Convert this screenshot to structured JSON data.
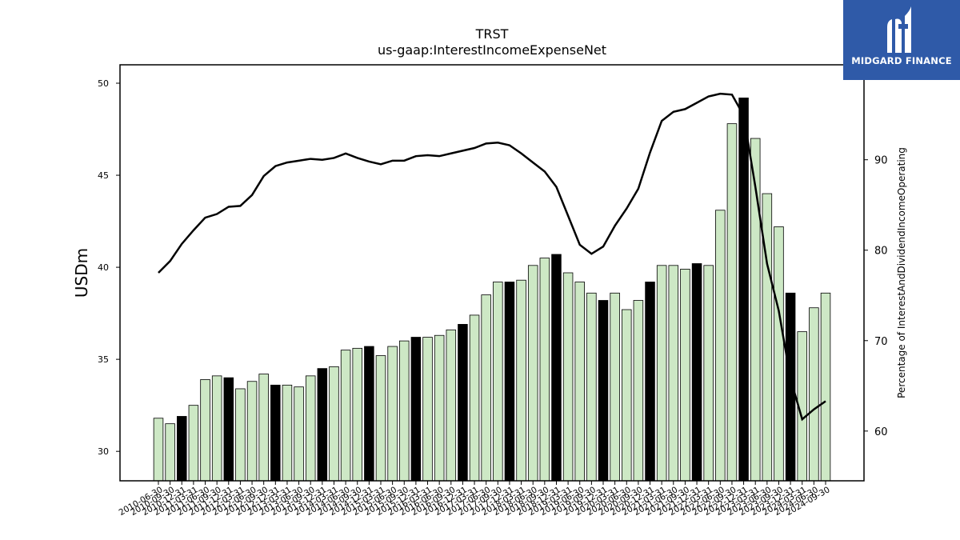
{
  "logo": {
    "text": "MIDGARD FINANCE",
    "bg": "#2f5aa8"
  },
  "chart_data": {
    "type": "bar+line",
    "title": "TRST",
    "subtitle": "us-gaap:InterestIncomeExpenseNet",
    "ylabel": "USDm",
    "y2label": "Percentage of InterestAndDividendIncomeOperating",
    "ylim": [
      28.4,
      51.0
    ],
    "y2lim": [
      54.5,
      100.5
    ],
    "yticks": [
      30,
      35,
      40,
      45,
      50
    ],
    "y2ticks": [
      60,
      70,
      80,
      90
    ],
    "bar_fill": "#cde8c5",
    "bar_highlight": "#000000",
    "line_color": "#000000",
    "categories": [
      "2010-06-30",
      "2010-09-30",
      "2010-12-31",
      "2011-03-31",
      "2011-06-30",
      "2011-09-30",
      "2011-12-31",
      "2012-03-31",
      "2012-06-30",
      "2012-09-30",
      "2012-12-31",
      "2013-03-31",
      "2013-06-30",
      "2013-09-30",
      "2013-12-31",
      "2014-03-31",
      "2014-06-30",
      "2014-09-30",
      "2014-12-31",
      "2015-03-31",
      "2015-06-30",
      "2015-09-30",
      "2015-12-31",
      "2016-03-31",
      "2016-06-30",
      "2016-09-30",
      "2016-12-31",
      "2017-03-31",
      "2017-06-30",
      "2017-09-30",
      "2017-12-31",
      "2018-03-31",
      "2018-06-30",
      "2018-09-30",
      "2018-12-31",
      "2019-03-31",
      "2019-06-30",
      "2019-09-30",
      "2019-12-31",
      "2020-03-31",
      "2020-06-30",
      "2020-09-30",
      "2020-12-31",
      "2021-03-31",
      "2021-06-30",
      "2021-09-30",
      "2021-12-31",
      "2022-03-31",
      "2022-06-30",
      "2022-09-30",
      "2022-12-31",
      "2023-03-31",
      "2023-06-30",
      "2023-09-30",
      "2023-12-31",
      "2024-03-31",
      "2024-06-30",
      "2024-09-30"
    ],
    "tick_labels": [
      "2010-06-30",
      "2010-09-30",
      "2010-12-31",
      "2011-03-31",
      "2011-06-30",
      "2011-09-30",
      "2011-12-31",
      "2012-03-31",
      "2012-06-30",
      "2012-09-30",
      "2012-12-31",
      "2013-03-31",
      "2013-06-30",
      "2013-09-30",
      "2013-12-31",
      "2014-03-31",
      "2014-06-30",
      "2014-09-30",
      "2014-12-31",
      "2015-03-31",
      "2015-06-30",
      "2015-09-30",
      "2015-12-31",
      "2016-03-31",
      "2016-06-30",
      "2016-09-30",
      "2016-12-31",
      "2017-03-31",
      "2017-06-30",
      "2017-09-30",
      "2017-12-31",
      "2018-03-31",
      "2018-06-30",
      "2018-09-30",
      "2018-12-31",
      "2019-03-31",
      "2019-06-30",
      "2019-09-30",
      "2019-12-31",
      "2020-03-31",
      "2020-06-30",
      "2020-09-30",
      "2020-12-31",
      "2021-03-31",
      "2021-06-30",
      "2021-09-30",
      "2021-12-31",
      "2022-03-31",
      "2022-06-30",
      "2022-09-30",
      "2022-12-31",
      "2023-03-31",
      "2023-06-30",
      "2023-09-30",
      "2023-12-31",
      "2024-03-31",
      "2024-06-30",
      "2024-09-30"
    ],
    "values": [
      31.8,
      31.5,
      31.9,
      32.5,
      33.9,
      34.1,
      34.0,
      33.4,
      33.8,
      34.2,
      33.6,
      33.6,
      33.5,
      34.1,
      34.5,
      34.6,
      35.5,
      35.6,
      35.7,
      35.2,
      35.7,
      36.0,
      36.2,
      36.2,
      36.3,
      36.6,
      36.9,
      37.4,
      38.5,
      39.2,
      39.2,
      39.3,
      40.1,
      40.5,
      40.7,
      39.7,
      39.2,
      38.6,
      38.2,
      38.6,
      37.7,
      38.2,
      39.2,
      40.1,
      40.1,
      39.9,
      40.2,
      40.1,
      43.1,
      47.8,
      49.2,
      47.0,
      44.0,
      42.2,
      38.6,
      36.5,
      37.8,
      38.6
    ],
    "highlight": [
      false,
      false,
      true,
      false,
      false,
      false,
      true,
      false,
      false,
      false,
      true,
      false,
      false,
      false,
      true,
      false,
      false,
      false,
      true,
      false,
      false,
      false,
      true,
      false,
      false,
      false,
      true,
      false,
      false,
      false,
      true,
      false,
      false,
      false,
      true,
      false,
      false,
      false,
      true,
      false,
      false,
      false,
      true,
      false,
      false,
      false,
      true,
      false,
      false,
      false,
      true,
      false,
      false,
      false,
      true,
      false,
      false,
      false
    ],
    "line_values": [
      77.5,
      78.8,
      80.7,
      82.2,
      83.6,
      84.0,
      84.8,
      84.9,
      86.1,
      88.2,
      89.3,
      89.7,
      89.9,
      90.1,
      90.0,
      90.2,
      90.7,
      90.2,
      89.8,
      89.5,
      89.9,
      89.9,
      90.4,
      90.5,
      90.4,
      90.7,
      91.0,
      91.3,
      91.8,
      91.9,
      91.6,
      90.7,
      89.7,
      88.7,
      87.0,
      83.8,
      80.6,
      79.6,
      80.4,
      82.7,
      84.6,
      86.8,
      90.8,
      94.3,
      95.3,
      95.6,
      96.3,
      97.0,
      97.3,
      97.2,
      94.9,
      87.0,
      78.5,
      73.3,
      65.8,
      61.3,
      62.4,
      63.3
    ]
  }
}
